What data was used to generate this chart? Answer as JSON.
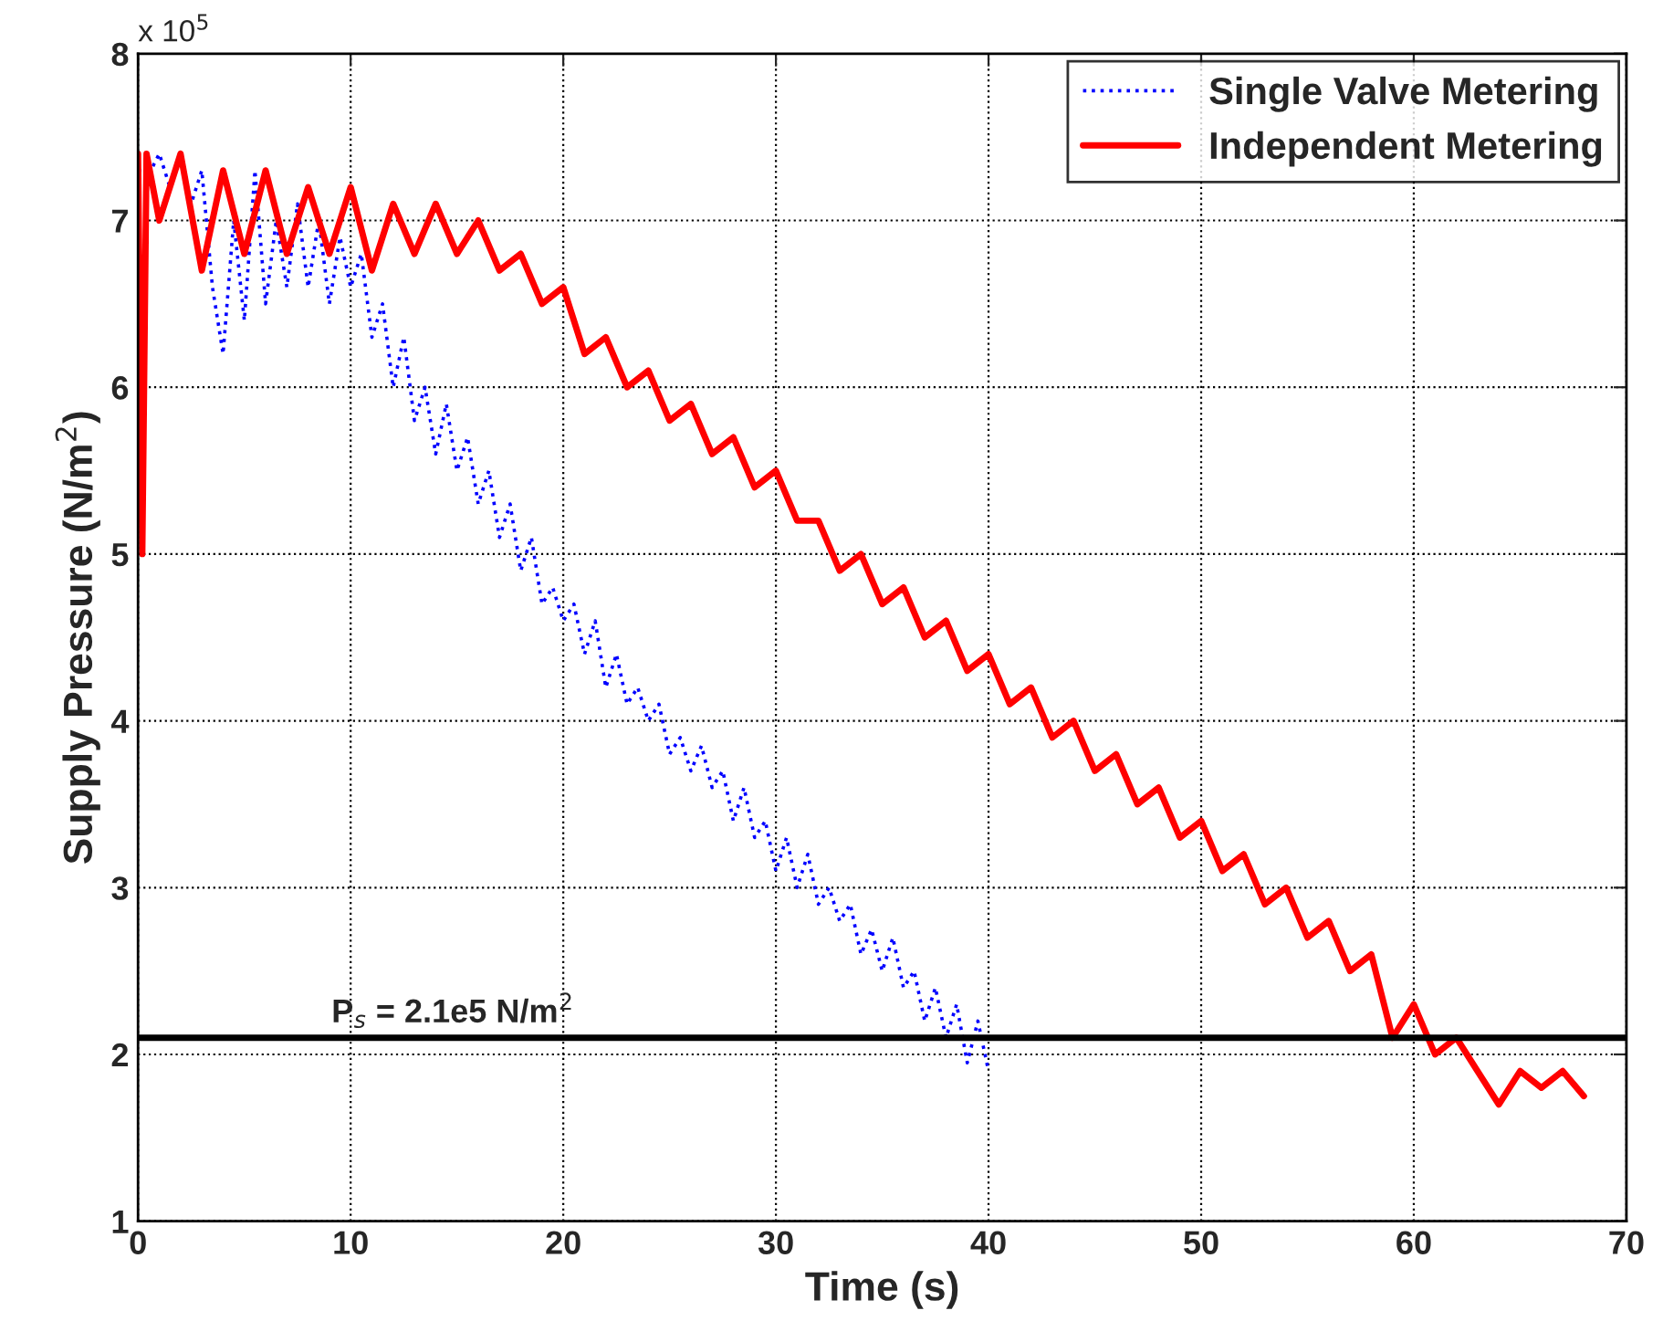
{
  "chart_data": {
    "type": "line",
    "xlabel": "Time (s)",
    "ylabel": "Supply Pressure (N/m$^{2}$)",
    "xlim": [
      0,
      70
    ],
    "xticks": [
      0,
      10,
      20,
      30,
      40,
      50,
      60,
      70
    ],
    "ylim": [
      1,
      8
    ],
    "yticks": [
      1,
      2,
      3,
      4,
      5,
      6,
      7,
      8
    ],
    "grid": true,
    "legend": "top right",
    "annotations": [
      "x 10$^{5}$"
    ],
    "ref_lines": [
      {
        "axis": "y",
        "value": 2.1,
        "label": "P$_{s}$ = 2.1e5 N/m$^{2}$",
        "color": "#000000",
        "line_style": "solid"
      }
    ],
    "series": [
      {
        "name": "Single Valve Metering",
        "color": "#0000ff",
        "line_style": "dotted",
        "x": [
          0,
          0.3,
          0.6,
          1,
          1.5,
          2,
          2.5,
          3,
          3.5,
          4,
          4.5,
          5,
          5.5,
          6,
          6.5,
          7,
          7.5,
          8,
          8.5,
          9,
          9.5,
          10,
          10.5,
          11,
          11.5,
          12,
          12.5,
          13,
          13.5,
          14,
          14.5,
          15,
          15.5,
          16,
          16.5,
          17,
          17.5,
          18,
          18.5,
          19,
          19.5,
          20,
          20.5,
          21,
          21.5,
          22,
          22.5,
          23,
          23.5,
          24,
          24.5,
          25,
          25.5,
          26,
          26.5,
          27,
          27.5,
          28,
          28.5,
          29,
          29.5,
          30,
          30.5,
          31,
          31.5,
          32,
          32.5,
          33,
          33.5,
          34,
          34.5,
          35,
          35.5,
          36,
          36.5,
          37,
          37.5,
          38,
          38.5,
          39,
          39.5,
          40
        ],
        "values": [
          7.3,
          null,
          7.3,
          7.4,
          7.2,
          7.4,
          7.1,
          7.3,
          6.6,
          6.2,
          7.0,
          6.4,
          7.3,
          6.5,
          7.0,
          6.6,
          7.1,
          6.6,
          7.0,
          6.5,
          6.9,
          6.6,
          6.8,
          6.3,
          6.5,
          6.0,
          6.3,
          5.8,
          6.0,
          5.6,
          5.9,
          5.5,
          5.7,
          5.3,
          5.5,
          5.1,
          5.3,
          4.9,
          5.1,
          4.7,
          4.8,
          4.6,
          4.7,
          4.4,
          4.6,
          4.2,
          4.4,
          4.1,
          4.2,
          4.0,
          4.1,
          3.8,
          3.9,
          3.7,
          3.85,
          3.6,
          3.7,
          3.4,
          3.6,
          3.3,
          3.4,
          3.1,
          3.3,
          3.0,
          3.2,
          2.9,
          3.0,
          2.8,
          2.9,
          2.6,
          2.75,
          2.5,
          2.7,
          2.4,
          2.5,
          2.2,
          2.4,
          2.1,
          2.3,
          1.95,
          2.2,
          1.9
        ]
      },
      {
        "name": "Independent Metering",
        "color": "#ff0000",
        "line_style": "solid",
        "x": [
          0,
          0.2,
          0.4,
          1,
          2,
          3,
          4,
          5,
          6,
          7,
          8,
          9,
          10,
          11,
          12,
          13,
          14,
          15,
          16,
          17,
          18,
          19,
          20,
          21,
          22,
          23,
          24,
          25,
          26,
          27,
          28,
          29,
          30,
          31,
          32,
          33,
          34,
          35,
          36,
          37,
          38,
          39,
          40,
          41,
          42,
          43,
          44,
          45,
          46,
          47,
          48,
          49,
          50,
          51,
          52,
          53,
          54,
          55,
          56,
          57,
          58,
          59,
          60,
          61,
          62,
          63,
          64,
          65,
          66,
          67,
          68
        ],
        "values": [
          7.4,
          5.0,
          7.4,
          7.0,
          7.4,
          6.7,
          7.3,
          6.8,
          7.3,
          6.8,
          7.2,
          6.8,
          7.2,
          6.7,
          7.1,
          6.8,
          7.1,
          6.8,
          7.0,
          6.7,
          6.8,
          6.5,
          6.6,
          6.2,
          6.3,
          6.0,
          6.1,
          5.8,
          5.9,
          5.6,
          5.7,
          5.4,
          5.5,
          5.2,
          5.2,
          4.9,
          5.0,
          4.7,
          4.8,
          4.5,
          4.6,
          4.3,
          4.4,
          4.1,
          4.2,
          3.9,
          4.0,
          3.7,
          3.8,
          3.5,
          3.6,
          3.3,
          3.4,
          3.1,
          3.2,
          2.9,
          3.0,
          2.7,
          2.8,
          2.5,
          2.6,
          2.1,
          2.3,
          2.0,
          2.1,
          1.9,
          1.7,
          1.9,
          1.8,
          1.9,
          1.75
        ]
      }
    ]
  }
}
